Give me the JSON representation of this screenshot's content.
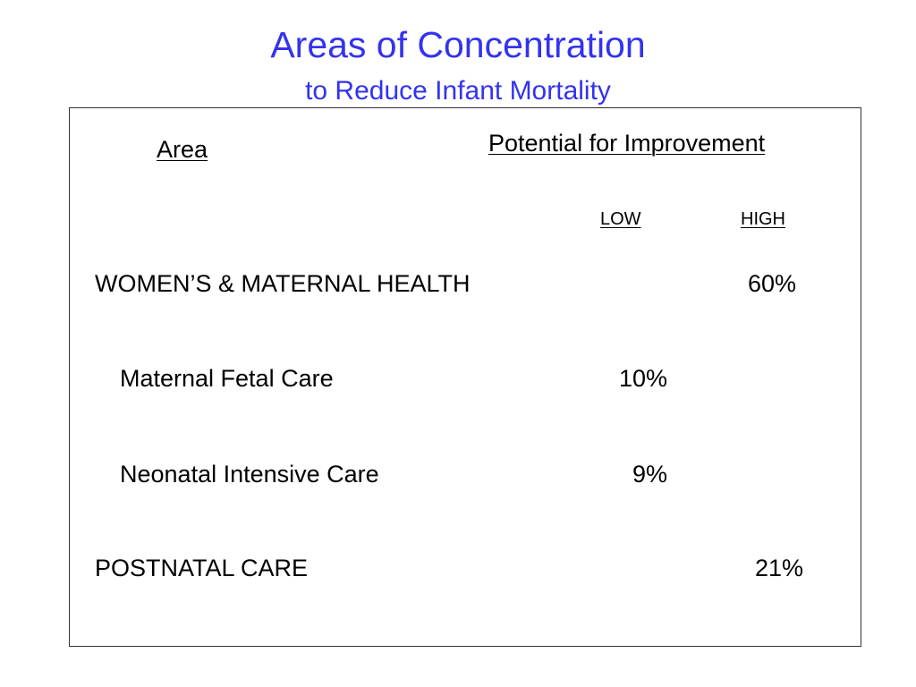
{
  "title": "Areas of Concentration",
  "subtitle": "to Reduce Infant Mortality",
  "table": {
    "area_header": "Area",
    "potential_header": "Potential for Improvement",
    "low_label": "LOW",
    "high_label": "HIGH",
    "rows": [
      {
        "label": "WOMEN’S & MATERNAL HEALTH",
        "low": "",
        "high": "60%"
      },
      {
        "label": "Maternal Fetal Care",
        "low": "10%",
        "high": ""
      },
      {
        "label": "Neonatal Intensive Care",
        "low": "9%",
        "high": ""
      },
      {
        "label": "POSTNATAL CARE",
        "low": "",
        "high": "21%"
      }
    ]
  }
}
